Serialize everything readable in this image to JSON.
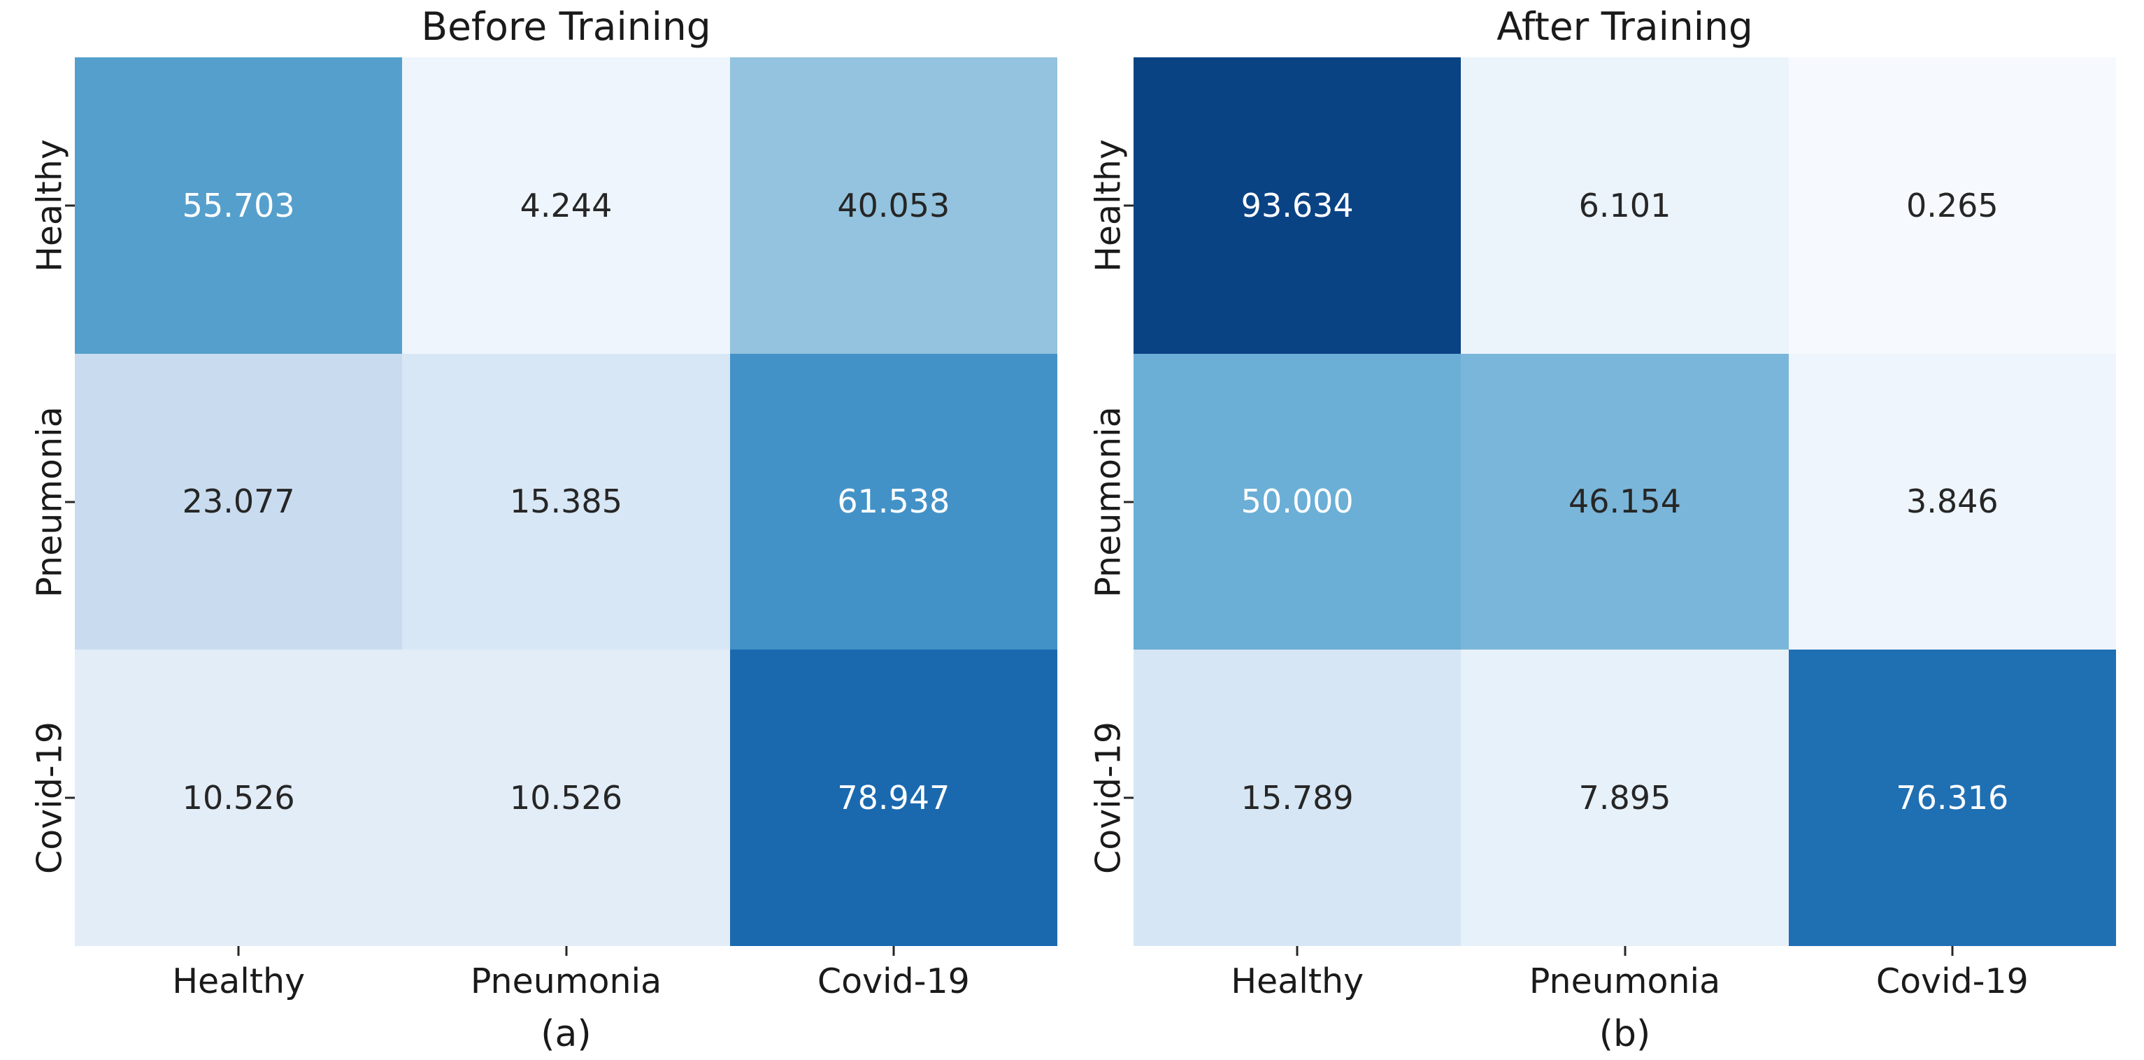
{
  "figure": {
    "type": "side-by-side confusion matrix heatmaps",
    "background": "#ffffff",
    "label_color": "#1a1a1a",
    "annotation_dark_text": "#262626",
    "annotation_light_text": "#ffffff"
  },
  "chart_data": [
    {
      "type": "heatmap",
      "title": "Before Training",
      "caption": "(a)",
      "colormap": "Blues",
      "vmin": 0,
      "vmax": 100,
      "legend": "none",
      "x_categories": [
        "Healthy",
        "Pneumonia",
        "Covid-19"
      ],
      "y_categories": [
        "Healthy",
        "Pneumonia",
        "Covid-19"
      ],
      "values": [
        [
          55.703,
          4.244,
          40.053
        ],
        [
          23.077,
          15.385,
          61.538
        ],
        [
          10.526,
          10.526,
          78.947
        ]
      ],
      "cell_labels": [
        [
          "55.703",
          "4.244",
          "40.053"
        ],
        [
          "23.077",
          "15.385",
          "61.538"
        ],
        [
          "10.526",
          "10.526",
          "78.947"
        ]
      ],
      "cell_colors": [
        [
          "#559fcd",
          "#eef5fc",
          "#93c3de"
        ],
        [
          "#c9dcef",
          "#d8e7f5",
          "#4392c7"
        ],
        [
          "#e2edf8",
          "#e2edf8",
          "#1a69af"
        ]
      ],
      "text_colors": [
        [
          "#ffffff",
          "#262626",
          "#262626"
        ],
        [
          "#262626",
          "#262626",
          "#ffffff"
        ],
        [
          "#262626",
          "#262626",
          "#ffffff"
        ]
      ]
    },
    {
      "type": "heatmap",
      "title": "After Training",
      "caption": "(b)",
      "colormap": "Blues",
      "vmin": 0,
      "vmax": 100,
      "legend": "none",
      "x_categories": [
        "Healthy",
        "Pneumonia",
        "Covid-19"
      ],
      "y_categories": [
        "Healthy",
        "Pneumonia",
        "Covid-19"
      ],
      "values": [
        [
          93.634,
          6.101,
          0.265
        ],
        [
          50.0,
          46.154,
          3.846
        ],
        [
          15.789,
          7.895,
          76.316
        ]
      ],
      "cell_labels": [
        [
          "93.634",
          "6.101",
          "0.265"
        ],
        [
          "50.000",
          "46.154",
          "3.846"
        ],
        [
          "15.789",
          "7.895",
          "76.316"
        ]
      ],
      "cell_colors": [
        [
          "#0a4384",
          "#ebf3fb",
          "#f6fafe"
        ],
        [
          "#6baed6",
          "#7ab6d9",
          "#eef5fc"
        ],
        [
          "#d6e6f4",
          "#e7f1fa",
          "#1f6fb3"
        ]
      ],
      "text_colors": [
        [
          "#ffffff",
          "#262626",
          "#262626"
        ],
        [
          "#ffffff",
          "#262626",
          "#262626"
        ],
        [
          "#262626",
          "#262626",
          "#ffffff"
        ]
      ]
    }
  ]
}
